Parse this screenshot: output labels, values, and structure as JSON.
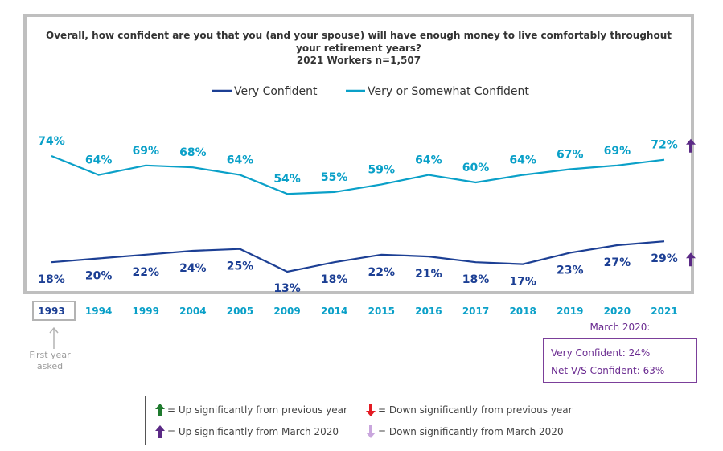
{
  "chart_data": {
    "type": "line",
    "title": "Overall, how confident are you that you (and your spouse) will have enough money to live comfortably throughout your retirement years?",
    "subtitle": "2021 Workers n=1,507",
    "categories": [
      "1993",
      "1994",
      "1999",
      "2004",
      "2005",
      "2009",
      "2014",
      "2015",
      "2016",
      "2017",
      "2018",
      "2019",
      "2020",
      "2021"
    ],
    "series": [
      {
        "name": "Very Confident",
        "color": "#1c3f94",
        "values": [
          18,
          20,
          22,
          24,
          25,
          13,
          18,
          22,
          21,
          18,
          17,
          23,
          27,
          29
        ],
        "labels": [
          "18%",
          "20%",
          "22%",
          "24%",
          "25%",
          "13%",
          "18%",
          "22%",
          "21%",
          "18%",
          "17%",
          "23%",
          "27%",
          "29%"
        ]
      },
      {
        "name": "Very or Somewhat Confident",
        "color": "#0aa0c8",
        "values": [
          74,
          64,
          69,
          68,
          64,
          54,
          55,
          59,
          64,
          60,
          64,
          67,
          69,
          72
        ],
        "labels": [
          "74%",
          "64%",
          "69%",
          "68%",
          "64%",
          "54%",
          "55%",
          "59%",
          "64%",
          "60%",
          "64%",
          "67%",
          "69%",
          "72%"
        ]
      }
    ],
    "legend_position": "top",
    "markers": [
      {
        "series": "Very or Somewhat Confident",
        "category": "2021",
        "type": "up-from-march-2020",
        "color": "#5b2a86"
      },
      {
        "series": "Very Confident",
        "category": "2021",
        "type": "up-from-march-2020",
        "color": "#5b2a86"
      }
    ]
  },
  "annotations": {
    "first_year_note": "First year asked",
    "march_heading": "March 2020:",
    "march_very": "Very Confident: 24%",
    "march_net": "Net V/S Confident: 63%"
  },
  "key": {
    "up_prev": "= Up significantly from previous year",
    "down_prev": "= Down significantly from previous year",
    "up_march": "= Up significantly from March 2020",
    "down_march": "= Down significantly from March 2020",
    "colors": {
      "up_prev": "#1f7a2e",
      "down_prev": "#e31b23",
      "up_march": "#5b2a86",
      "down_march": "#c9a6dd"
    }
  }
}
